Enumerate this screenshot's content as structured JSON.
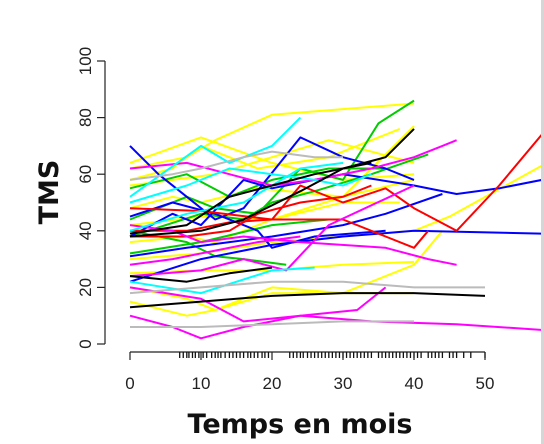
{
  "chart_data": {
    "type": "line",
    "title": "",
    "xlabel": "Temps en mois",
    "ylabel": "TMS",
    "xlim": [
      0,
      58
    ],
    "ylim": [
      0,
      100
    ],
    "xticks": [
      0,
      10,
      20,
      30,
      40,
      50
    ],
    "yticks": [
      0,
      20,
      40,
      60,
      80,
      100
    ],
    "grid": false,
    "legend": "none",
    "rug_x": [
      7,
      7.5,
      8,
      8.3,
      8.8,
      9.2,
      9.7,
      10.3,
      10.8,
      11.5,
      12,
      12.4,
      12.8,
      13.4,
      14,
      14.5,
      15,
      15.5,
      16,
      16.6,
      17,
      17.5,
      18,
      18.6,
      19,
      19.5,
      22.5,
      23,
      23.5,
      24,
      24.4,
      25,
      25.5,
      26,
      26.5,
      27,
      27.5,
      28,
      28.5,
      29,
      29.5,
      30,
      30.5,
      31,
      31.5,
      32,
      32.5,
      33,
      33.5,
      34,
      35,
      35.5,
      36,
      36.5,
      37,
      37.5,
      38,
      38.5,
      39,
      39.5,
      40,
      40.5,
      41,
      42,
      42.5,
      43,
      43.5,
      44,
      45,
      45.5,
      46,
      47,
      48,
      50
    ],
    "series": [
      {
        "color": "#ffff00",
        "x": [
          0,
          8,
          12,
          20,
          30,
          40
        ],
        "y": [
          62,
          66,
          72,
          81,
          83,
          85
        ]
      },
      {
        "color": "#ffff00",
        "x": [
          0,
          12,
          20,
          28,
          40
        ],
        "y": [
          56,
          60,
          66,
          72,
          64
        ]
      },
      {
        "color": "#ffff00",
        "x": [
          0,
          6,
          10,
          18,
          30,
          40
        ],
        "y": [
          48,
          52,
          50,
          55,
          52,
          58
        ]
      },
      {
        "color": "#ffff00",
        "x": [
          0,
          10,
          20,
          30,
          38
        ],
        "y": [
          42,
          45,
          44,
          50,
          50
        ]
      },
      {
        "color": "#ffff00",
        "x": [
          0,
          10,
          20,
          30,
          40
        ],
        "y": [
          25,
          26,
          26,
          28,
          29
        ]
      },
      {
        "color": "#ffff00",
        "x": [
          0,
          8,
          12,
          20,
          30,
          40
        ],
        "y": [
          20,
          16,
          12,
          18,
          18,
          18
        ]
      },
      {
        "color": "#ffff00",
        "x": [
          0,
          10,
          20,
          30,
          40,
          45,
          58
        ],
        "y": [
          30,
          32,
          36,
          38,
          40,
          45,
          63
        ]
      },
      {
        "color": "#ffff00",
        "x": [
          0,
          8,
          12,
          20,
          30,
          40,
          44
        ],
        "y": [
          15,
          10,
          12,
          20,
          18,
          28,
          40
        ]
      },
      {
        "color": "#ffff00",
        "x": [
          0,
          8,
          12,
          20,
          30,
          40
        ],
        "y": [
          36,
          38,
          36,
          44,
          52,
          77
        ]
      },
      {
        "color": "#ffff00",
        "x": [
          0,
          6,
          10,
          18,
          28,
          38
        ],
        "y": [
          58,
          62,
          70,
          62,
          66,
          76
        ]
      },
      {
        "color": "#ffff00",
        "x": [
          0,
          10,
          20,
          30,
          40
        ],
        "y": [
          64,
          73,
          64,
          58,
          60
        ]
      },
      {
        "color": "#00cc00",
        "x": [
          0,
          8,
          12,
          18,
          24,
          30,
          35,
          40
        ],
        "y": [
          44,
          52,
          48,
          46,
          62,
          58,
          78,
          86
        ]
      },
      {
        "color": "#00cc00",
        "x": [
          0,
          10,
          16,
          20,
          26,
          34,
          42
        ],
        "y": [
          38,
          46,
          44,
          50,
          54,
          60,
          67
        ]
      },
      {
        "color": "#00cc00",
        "x": [
          0,
          8,
          14,
          20,
          28,
          36
        ],
        "y": [
          55,
          60,
          52,
          58,
          62,
          62
        ]
      },
      {
        "color": "#00cc00",
        "x": [
          0,
          10,
          20,
          28
        ],
        "y": [
          32,
          36,
          42,
          44
        ]
      },
      {
        "color": "#00cc00",
        "x": [
          0,
          8,
          12,
          16,
          22
        ],
        "y": [
          40,
          36,
          31,
          30,
          28
        ]
      },
      {
        "color": "#0000ff",
        "x": [
          0,
          4,
          8,
          12,
          16,
          24,
          30,
          36,
          40
        ],
        "y": [
          70,
          60,
          52,
          44,
          48,
          73,
          66,
          62,
          58
        ]
      },
      {
        "color": "#0000ff",
        "x": [
          0,
          6,
          10,
          16,
          20,
          30,
          40,
          46,
          52,
          58
        ],
        "y": [
          38,
          46,
          42,
          58,
          55,
          60,
          56,
          53,
          55,
          58
        ]
      },
      {
        "color": "#0000ff",
        "x": [
          0,
          8,
          14,
          20,
          30,
          36,
          44
        ],
        "y": [
          31,
          34,
          36,
          38,
          42,
          46,
          53
        ]
      },
      {
        "color": "#0000ff",
        "x": [
          0,
          10,
          20,
          30,
          40,
          58
        ],
        "y": [
          22,
          30,
          35,
          38,
          40,
          39
        ]
      },
      {
        "color": "#0000ff",
        "x": [
          0,
          6,
          12,
          18,
          20,
          26,
          36
        ],
        "y": [
          45,
          50,
          46,
          40,
          34,
          38,
          40
        ]
      },
      {
        "color": "#ff0000",
        "x": [
          0,
          8,
          14,
          20,
          24,
          30,
          36,
          40,
          46,
          52,
          58
        ],
        "y": [
          40,
          40,
          43,
          44,
          56,
          50,
          55,
          48,
          40,
          56,
          74
        ]
      },
      {
        "color": "#ff0000",
        "x": [
          0,
          10,
          20,
          30,
          36,
          40,
          42
        ],
        "y": [
          48,
          47,
          44,
          44,
          38,
          34,
          40
        ]
      },
      {
        "color": "#ff0000",
        "x": [
          0,
          8,
          14,
          18,
          24,
          30,
          34
        ],
        "y": [
          38,
          38,
          40,
          46,
          50,
          52,
          56
        ]
      },
      {
        "color": "#ff00ff",
        "x": [
          0,
          8,
          14,
          20,
          26,
          34,
          40,
          44,
          46
        ],
        "y": [
          62,
          64,
          60,
          56,
          58,
          62,
          66,
          70,
          72
        ]
      },
      {
        "color": "#ff00ff",
        "x": [
          0,
          6,
          10,
          16,
          24,
          36,
          42,
          46
        ],
        "y": [
          42,
          40,
          36,
          38,
          36,
          34,
          30,
          28
        ]
      },
      {
        "color": "#ff00ff",
        "x": [
          0,
          10,
          16,
          24,
          32,
          36
        ],
        "y": [
          20,
          16,
          8,
          10,
          12,
          20
        ]
      },
      {
        "color": "#ff00ff",
        "x": [
          0,
          6,
          10,
          16,
          24,
          34,
          46,
          58
        ],
        "y": [
          10,
          6,
          2,
          6,
          10,
          8,
          7,
          5
        ]
      },
      {
        "color": "#ff00ff",
        "x": [
          0,
          10,
          16,
          22,
          28,
          40
        ],
        "y": [
          24,
          26,
          30,
          26,
          42,
          56
        ]
      },
      {
        "color": "#ff00ff",
        "x": [
          0,
          6,
          12,
          18,
          24
        ],
        "y": [
          28,
          30,
          33,
          36,
          38
        ]
      },
      {
        "color": "#00ffff",
        "x": [
          0,
          10,
          14,
          20,
          24
        ],
        "y": [
          52,
          70,
          64,
          70,
          80
        ]
      },
      {
        "color": "#00ffff",
        "x": [
          0,
          10,
          20,
          26
        ],
        "y": [
          22,
          18,
          26,
          27
        ]
      },
      {
        "color": "#00ffff",
        "x": [
          0,
          8,
          14,
          20,
          26,
          30,
          34
        ],
        "y": [
          50,
          56,
          62,
          60,
          58,
          56,
          60
        ]
      },
      {
        "color": "#00ffff",
        "x": [
          0,
          8,
          16,
          24,
          30
        ],
        "y": [
          40,
          46,
          50,
          62,
          64
        ]
      },
      {
        "color": "#000000",
        "x": [
          0,
          10,
          20,
          30,
          40,
          50
        ],
        "y": [
          13,
          15,
          17,
          18,
          18,
          17
        ]
      },
      {
        "color": "#000000",
        "x": [
          0,
          8,
          14,
          20
        ],
        "y": [
          24,
          22,
          25,
          27
        ]
      },
      {
        "color": "#000000",
        "x": [
          0,
          10,
          16,
          24,
          30,
          36,
          40
        ],
        "y": [
          38,
          40,
          44,
          54,
          62,
          66,
          76
        ]
      },
      {
        "color": "#000000",
        "x": [
          0,
          8,
          14,
          20,
          26,
          34
        ],
        "y": [
          39,
          42,
          52,
          56,
          60,
          64
        ]
      },
      {
        "color": "#bbbbbb",
        "x": [
          0,
          10,
          20,
          30,
          40
        ],
        "y": [
          6,
          6,
          7,
          8,
          8
        ]
      },
      {
        "color": "#bbbbbb",
        "x": [
          0,
          6,
          10,
          16,
          20,
          26,
          30
        ],
        "y": [
          58,
          60,
          62,
          66,
          68,
          66,
          66
        ]
      },
      {
        "color": "#bbbbbb",
        "x": [
          0,
          10,
          20,
          30,
          40,
          50
        ],
        "y": [
          18,
          20,
          22,
          22,
          20,
          20
        ]
      }
    ]
  }
}
